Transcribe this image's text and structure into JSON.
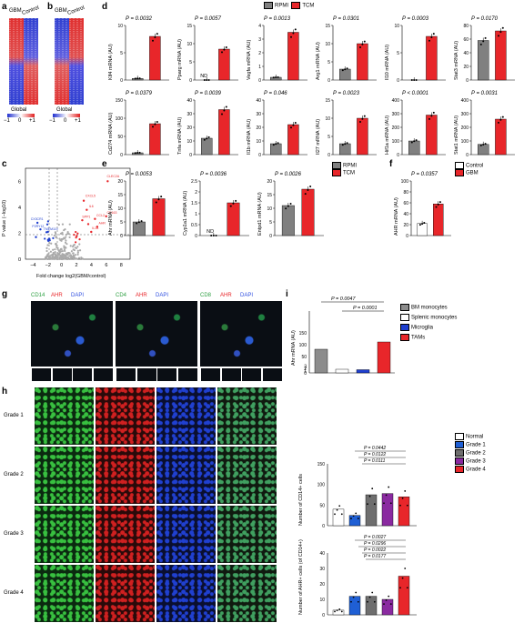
{
  "panel_letters": {
    "a": "a",
    "b": "b",
    "c": "c",
    "d": "d",
    "e": "e",
    "f": "f",
    "g": "g",
    "h": "h",
    "i": "i"
  },
  "heatmaps": {
    "a": {
      "col_labels": [
        "GBM",
        "Control"
      ],
      "legend_title": "Global",
      "ticks": [
        "−1",
        "0",
        "+1"
      ]
    },
    "b": {
      "col_labels": [
        "GBM",
        "Control"
      ],
      "legend_title": "Global",
      "ticks": [
        "−1",
        "0",
        "+1"
      ]
    }
  },
  "colors": {
    "rpmi": "#808080",
    "tcm": "#e8262a",
    "control": "#ffffff",
    "gbm": "#e8262a",
    "bm": "#8c8c8c",
    "splenic": "#ffffff",
    "microglia": "#1f3fcf",
    "tams": "#e8262a",
    "normal": "#ffffff",
    "g1": "#1f5fd4",
    "g2": "#6e6e6e",
    "g3": "#8a2aa0",
    "g4": "#e8262a"
  },
  "legend_d": {
    "rpmi": "RPMI",
    "tcm": "TCM"
  },
  "legend_e": {
    "rpmi": "RPMI",
    "tcm": "TCM"
  },
  "legend_f": {
    "control": "Control",
    "gbm": "GBM"
  },
  "legend_i": [
    "BM monocytes",
    "Splenic monocytes",
    "Microglia",
    "TAMs"
  ],
  "legend_h": [
    "Normal",
    "Grade 1",
    "Grade 2",
    "Grade 3",
    "Grade 4"
  ],
  "volcano": {
    "xlabel": "Fold change log2(GBM/control)",
    "ylabel": "P value (−log10)",
    "xticks": [
      "−4",
      "−2",
      "0",
      "2",
      "4",
      "6",
      "8"
    ],
    "yticks": [
      "0",
      "2",
      "4",
      "6"
    ],
    "labels_up": [
      "CLEC2A",
      "CXCL5",
      "IL6",
      "CCL2",
      "CD163",
      "AHR",
      "SPP1",
      "IL1B"
    ],
    "labels_down": [
      "CX3CR1",
      "P2RY12",
      "TMEM119"
    ]
  },
  "chart_data": [
    {
      "type": "bar",
      "panel": "d",
      "gene": "Klf4 mRNA (AU)",
      "pvalue": "P = 0.0032",
      "categories": [
        "RPMI",
        "TCM"
      ],
      "values": [
        0.3,
        8
      ],
      "ylim": [
        0,
        10
      ],
      "yticks": [
        0,
        5,
        10
      ]
    },
    {
      "type": "bar",
      "panel": "d",
      "gene": "Pparg mRNA (AU)",
      "pvalue": "P = 0.0057",
      "categories": [
        "RPMI",
        "TCM"
      ],
      "values": [
        0,
        8.5
      ],
      "ylim": [
        0,
        15
      ],
      "yticks": [
        0,
        5,
        10,
        15
      ],
      "nd": "ND"
    },
    {
      "type": "bar",
      "panel": "d",
      "gene": "Vegfa mRNA (AU)",
      "pvalue": "P = 0.0013",
      "categories": [
        "RPMI",
        "TCM"
      ],
      "values": [
        0.2,
        3.5
      ],
      "ylim": [
        0,
        4
      ],
      "yticks": [
        0,
        1,
        2,
        3,
        4
      ]
    },
    {
      "type": "bar",
      "panel": "d",
      "gene": "Arg1 mRNA (AU)",
      "pvalue": "P = 0.0301",
      "categories": [
        "RPMI",
        "TCM"
      ],
      "values": [
        3,
        10
      ],
      "ylim": [
        0,
        15
      ],
      "yticks": [
        0,
        5,
        10,
        15
      ]
    },
    {
      "type": "bar",
      "panel": "d",
      "gene": "Il10 mRNA (AU)",
      "pvalue": "P = 0.0003",
      "categories": [
        "RPMI",
        "TCM"
      ],
      "values": [
        0,
        8
      ],
      "ylim": [
        0,
        10
      ],
      "yticks": [
        0,
        5,
        10
      ]
    },
    {
      "type": "bar",
      "panel": "d",
      "gene": "Stat3 mRNA (AU)",
      "pvalue": "P = 0.0170",
      "categories": [
        "RPMI",
        "TCM"
      ],
      "values": [
        58,
        72
      ],
      "ylim": [
        0,
        80
      ],
      "yticks": [
        0,
        20,
        40,
        60,
        80
      ]
    },
    {
      "type": "bar",
      "panel": "d",
      "gene": "Cd274 mRNA (AU)",
      "pvalue": "P = 0.0379",
      "categories": [
        "RPMI",
        "TCM"
      ],
      "values": [
        5,
        85
      ],
      "ylim": [
        0,
        150
      ],
      "yticks": [
        0,
        50,
        100,
        150
      ]
    },
    {
      "type": "bar",
      "panel": "d",
      "gene": "Tnfa mRNA (AU)",
      "pvalue": "P = 0.0039",
      "categories": [
        "RPMI",
        "TCM"
      ],
      "values": [
        12,
        33
      ],
      "ylim": [
        0,
        40
      ],
      "yticks": [
        0,
        10,
        20,
        30,
        40
      ]
    },
    {
      "type": "bar",
      "panel": "d",
      "gene": "Il1b mRNA (AU)",
      "pvalue": "P = 0.046",
      "categories": [
        "RPMI",
        "TCM"
      ],
      "values": [
        8,
        22
      ],
      "ylim": [
        0,
        40
      ],
      "yticks": [
        0,
        10,
        20,
        30,
        40
      ]
    },
    {
      "type": "bar",
      "panel": "d",
      "gene": "Il27 mRNA (AU)",
      "pvalue": "P = 0.0023",
      "categories": [
        "RPMI",
        "TCM"
      ],
      "values": [
        3,
        10
      ],
      "ylim": [
        0,
        15
      ],
      "yticks": [
        0,
        5,
        10,
        15
      ]
    },
    {
      "type": "bar",
      "panel": "d",
      "gene": "Hif1a mRNA (AU)",
      "pvalue": "P < 0.0001",
      "categories": [
        "RPMI",
        "TCM"
      ],
      "values": [
        100,
        290
      ],
      "ylim": [
        0,
        400
      ],
      "yticks": [
        0,
        100,
        200,
        300,
        400
      ]
    },
    {
      "type": "bar",
      "panel": "d",
      "gene": "Stat1 mRNA (AU)",
      "pvalue": "P = 0.0031",
      "categories": [
        "RPMI",
        "TCM"
      ],
      "values": [
        75,
        260
      ],
      "ylim": [
        0,
        400
      ],
      "yticks": [
        0,
        100,
        200,
        300,
        400
      ]
    },
    {
      "type": "bar",
      "panel": "e",
      "gene": "Ahr mRNA (AU)",
      "pvalue": "P = 0.0053",
      "categories": [
        "RPMI",
        "TCM"
      ],
      "values": [
        5,
        13.5
      ],
      "ylim": [
        0,
        20
      ],
      "yticks": [
        0,
        5,
        10,
        15,
        20
      ]
    },
    {
      "type": "bar",
      "panel": "e",
      "gene": "Cyp1a1 mRNA (AU)",
      "pvalue": "P = 0.0036",
      "categories": [
        "RPMI",
        "TCM"
      ],
      "values": [
        0,
        1.5
      ],
      "ylim": [
        0,
        2.5
      ],
      "yticks": [
        0,
        0.5,
        1.0,
        1.5,
        2.0,
        2.5
      ],
      "nd": "ND"
    },
    {
      "type": "bar",
      "panel": "e",
      "gene": "Entpd1 mRNA (AU)",
      "pvalue": "P = 0.0026",
      "categories": [
        "RPMI",
        "TCM"
      ],
      "values": [
        11,
        17
      ],
      "ylim": [
        0,
        20
      ],
      "yticks": [
        0,
        5,
        10,
        15,
        20
      ]
    },
    {
      "type": "bar",
      "panel": "f",
      "gene": "AHR mRNA (AU)",
      "pvalue": "P = 0.0357",
      "categories": [
        "Control",
        "GBM"
      ],
      "values": [
        22,
        58
      ],
      "ylim": [
        0,
        100
      ],
      "yticks": [
        0,
        20,
        40,
        60,
        80,
        100
      ]
    },
    {
      "type": "bar",
      "panel": "i",
      "gene": "Ahr mRNA (AU)",
      "pvalues": [
        "P = 0.0047",
        "P = 0.0001"
      ],
      "categories": [
        "BM monocytes",
        "Splenic monocytes",
        "Microglia",
        "TAMs"
      ],
      "values": [
        65,
        1.5,
        1.2,
        120
      ],
      "yticks": [
        0,
        1,
        2,
        3,
        50,
        100,
        150
      ]
    },
    {
      "type": "bar",
      "panel": "h1",
      "ylabel": "Number of CD14+ cells",
      "pvalues": [
        "P = 0.0442",
        "P = 0.0122",
        "P = 0.0111"
      ],
      "categories": [
        "Normal",
        "Grade 1",
        "Grade 2",
        "Grade 3",
        "Grade 4"
      ],
      "values": [
        40,
        25,
        75,
        78,
        70
      ],
      "ylim": [
        0,
        150
      ],
      "yticks": [
        0,
        50,
        100,
        150
      ]
    },
    {
      "type": "bar",
      "panel": "h2",
      "ylabel": "Number of AHR+ cells (of CD14+)",
      "pvalues": [
        "P = 0.0027",
        "P = 0.0296",
        "P = 0.0022",
        "P = 0.0177"
      ],
      "categories": [
        "Normal",
        "Grade 1",
        "Grade 2",
        "Grade 3",
        "Grade 4"
      ],
      "values": [
        3,
        12,
        12,
        10,
        25
      ],
      "ylim": [
        0,
        40
      ],
      "yticks": [
        0,
        10,
        20,
        30,
        40
      ]
    }
  ],
  "panel_g": {
    "groups": [
      [
        "CD14",
        "AHR",
        "DAPI"
      ],
      [
        "CD4",
        "AHR",
        "DAPI"
      ],
      [
        "CD8",
        "AHR",
        "DAPI"
      ]
    ]
  },
  "panel_h": {
    "cols": [
      "CD14",
      "AHR",
      "DAPI",
      "Overlay"
    ],
    "rows": [
      "Grade 1",
      "Grade 2",
      "Grade 3",
      "Grade 4"
    ]
  }
}
